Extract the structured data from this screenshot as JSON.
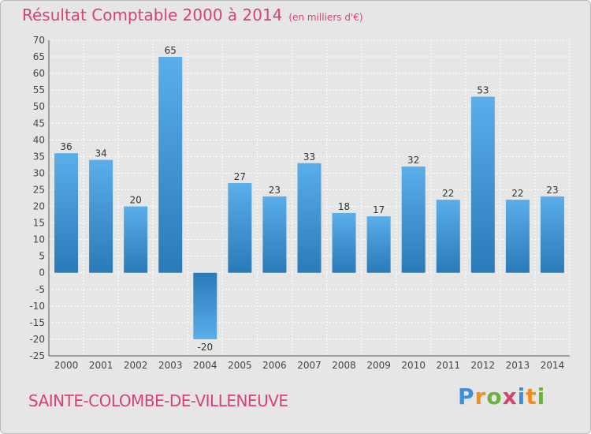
{
  "chart_data": {
    "type": "bar",
    "title": "Résultat Comptable 2000 à 2014",
    "subtitle": "(en milliers d'€)",
    "categories": [
      "2000",
      "2001",
      "2002",
      "2003",
      "2004",
      "2005",
      "2006",
      "2007",
      "2008",
      "2009",
      "2010",
      "2011",
      "2012",
      "2013",
      "2014"
    ],
    "values": [
      36,
      34,
      20,
      65,
      -20,
      27,
      23,
      33,
      18,
      17,
      32,
      22,
      53,
      22,
      23
    ],
    "data_labels": [
      "36",
      "34",
      "20",
      "65",
      "-20",
      "27",
      "23",
      "33",
      "18",
      "17",
      "32",
      "22",
      "53",
      "22",
      "23"
    ],
    "yticks": [
      "70",
      "65",
      "60",
      "55",
      "50",
      "45",
      "40",
      "35",
      "30",
      "25",
      "20",
      "15",
      "10",
      "5",
      "0",
      "-5",
      "-10",
      "-15",
      "-20",
      "-25"
    ],
    "ylim": [
      -25,
      70
    ],
    "grid": true,
    "colors": {
      "bar_top": "#5aaeea",
      "bar_bottom": "#2a7ab8",
      "title": "#d6436f"
    }
  },
  "footer": {
    "commune": "SAINTE-COLOMBE-DE-VILLENEUVE"
  },
  "brand": {
    "letters": [
      "P",
      "r",
      "o",
      "x",
      "i",
      "t",
      "i"
    ],
    "colors": [
      "#3d8fd6",
      "#f28c1e",
      "#6ab23e",
      "#d6436f",
      "#3d8fd6",
      "#f28c1e",
      "#6ab23e"
    ]
  }
}
